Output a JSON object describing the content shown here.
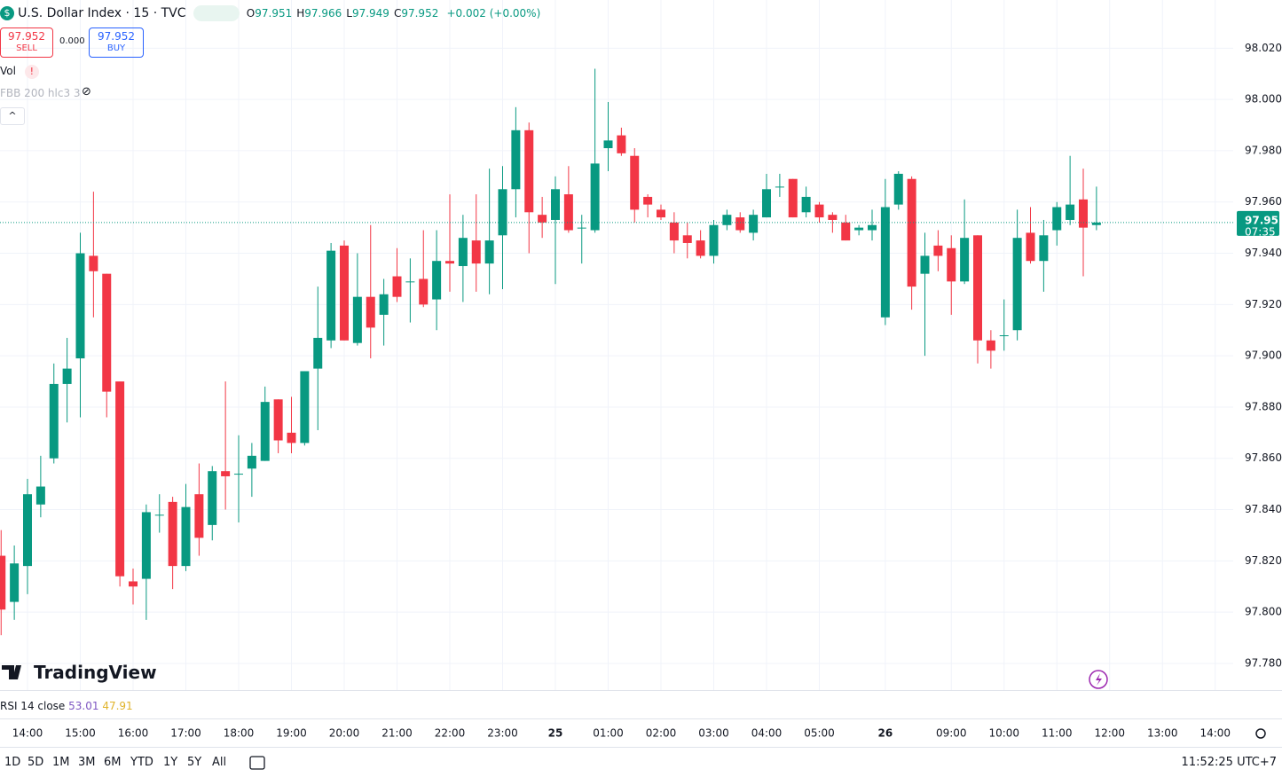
{
  "header": {
    "symbol": "U.S. Dollar Index · 15 · TVC",
    "ohlc": [
      {
        "label": "O",
        "value": 97.951
      },
      {
        "label": "H",
        "value": 97.966
      },
      {
        "label": "L",
        "value": 97.949
      },
      {
        "label": "C",
        "value": 97.952
      }
    ],
    "change": "+0.002 (+0.00%)"
  },
  "trade": {
    "sell_price": 97.952,
    "sell_label": "SELL",
    "spread": "0.000",
    "buy_price": 97.952,
    "buy_label": "BUY"
  },
  "indicators": {
    "volume": "Vol",
    "fbb": "FBB 200 hlc3 3",
    "rsi": "RSI 14 close",
    "rsi_values": [
      53.01,
      47.91
    ]
  },
  "logo": "TradingView",
  "ranges": [
    "1D",
    "5D",
    "1M",
    "3M",
    "6M",
    "YTD",
    "1Y",
    "5Y",
    "All"
  ],
  "clock": "11:52:25 UTC+7",
  "chart_data": {
    "type": "candlestick",
    "categories": [
      null,
      null,
      "14:00",
      null,
      null,
      null,
      "15:00",
      null,
      null,
      null,
      "16:00",
      null,
      null,
      null,
      "17:00",
      null,
      null,
      null,
      "18:00",
      null,
      null,
      null,
      "19:00",
      null,
      null,
      null,
      "20:00",
      null,
      null,
      null,
      "21:00",
      null,
      null,
      null,
      "22:00",
      null,
      null,
      null,
      "23:00",
      null,
      null,
      null,
      "25",
      null,
      null,
      null,
      "01:00",
      null,
      null,
      null,
      "02:00",
      null,
      null,
      null,
      "03:00",
      null,
      null,
      null,
      "04:00",
      null,
      null,
      null,
      "05:00",
      null,
      null,
      null,
      null,
      "26",
      null,
      null,
      null,
      null,
      "09:00",
      null,
      null,
      null,
      "10:00",
      null,
      null,
      null,
      "11:00",
      null,
      null,
      null,
      "12:00",
      null,
      null,
      null,
      "13:00",
      null,
      null,
      null,
      "14:00"
    ],
    "open": [
      97.822,
      97.804,
      97.818,
      97.842,
      97.86,
      97.889,
      97.899,
      97.939,
      97.932,
      97.89,
      97.812,
      97.813,
      97.838,
      97.843,
      97.818,
      97.846,
      97.834,
      97.855,
      97.854,
      97.856,
      97.859,
      97.883,
      97.87,
      97.866,
      97.895,
      97.906,
      97.943,
      97.905,
      97.923,
      97.916,
      97.931,
      97.929,
      97.93,
      97.922,
      97.937,
      97.935,
      97.945,
      97.936,
      97.947,
      97.965,
      97.988,
      97.955,
      97.953,
      97.963,
      97.95,
      97.949,
      97.981,
      97.986,
      97.978,
      97.962,
      97.957,
      97.952,
      97.947,
      97.945,
      97.939,
      97.951,
      97.954,
      97.948,
      97.954,
      97.966,
      97.969,
      97.956,
      97.959,
      97.955,
      97.952,
      97.949,
      97.949,
      97.915,
      97.959,
      97.969,
      97.932,
      97.943,
      97.942,
      97.929,
      97.947,
      97.906,
      97.908,
      97.91,
      97.948,
      97.937,
      97.949,
      97.953,
      97.961,
      97.951,
      null,
      null,
      null,
      null,
      null,
      null,
      null,
      null,
      null
    ],
    "high": [
      97.832,
      97.826,
      97.852,
      97.861,
      97.897,
      97.907,
      97.948,
      97.964,
      97.932,
      97.89,
      97.817,
      97.842,
      97.846,
      97.845,
      97.85,
      97.858,
      97.857,
      97.89,
      97.869,
      97.866,
      97.888,
      97.883,
      97.884,
      97.894,
      97.927,
      97.944,
      97.945,
      97.94,
      97.951,
      97.93,
      97.942,
      97.938,
      97.949,
      97.949,
      97.963,
      97.955,
      97.963,
      97.973,
      97.974,
      97.997,
      97.991,
      97.962,
      97.97,
      97.974,
      97.955,
      98.012,
      97.999,
      97.989,
      97.981,
      97.963,
      97.959,
      97.956,
      97.952,
      97.949,
      97.953,
      97.957,
      97.956,
      97.957,
      97.971,
      97.971,
      97.969,
      97.966,
      97.96,
      97.956,
      97.955,
      97.951,
      97.957,
      97.969,
      97.972,
      97.97,
      97.948,
      97.949,
      97.947,
      97.961,
      97.947,
      97.91,
      97.922,
      97.957,
      97.958,
      97.953,
      97.96,
      97.978,
      97.973,
      97.966,
      null,
      null,
      null,
      null,
      null,
      null,
      null,
      null,
      null
    ],
    "low": [
      97.791,
      97.797,
      97.807,
      97.837,
      97.858,
      97.874,
      97.876,
      97.915,
      97.876,
      97.81,
      97.803,
      97.797,
      97.831,
      97.809,
      97.816,
      97.822,
      97.828,
      97.84,
      97.835,
      97.845,
      97.859,
      97.862,
      97.862,
      97.865,
      97.871,
      97.903,
      97.906,
      97.904,
      97.899,
      97.904,
      97.921,
      97.913,
      97.919,
      97.91,
      97.925,
      97.921,
      97.925,
      97.924,
      97.926,
      97.954,
      97.94,
      97.946,
      97.928,
      97.948,
      97.936,
      97.948,
      97.972,
      97.978,
      97.952,
      97.954,
      97.953,
      97.94,
      97.938,
      97.938,
      97.936,
      97.949,
      97.948,
      97.945,
      97.954,
      97.962,
      97.954,
      97.954,
      97.952,
      97.948,
      97.945,
      97.947,
      97.945,
      97.912,
      97.957,
      97.918,
      97.9,
      97.933,
      97.916,
      97.928,
      97.897,
      97.895,
      97.902,
      97.906,
      97.936,
      97.925,
      97.943,
      97.951,
      97.931,
      97.949,
      null,
      null,
      null,
      null,
      null,
      null,
      null,
      null,
      null
    ],
    "close": [
      97.801,
      97.819,
      97.846,
      97.849,
      97.889,
      97.895,
      97.94,
      97.933,
      97.886,
      97.814,
      97.81,
      97.839,
      97.838,
      97.818,
      97.841,
      97.829,
      97.855,
      97.853,
      97.854,
      97.861,
      97.882,
      97.867,
      97.866,
      97.894,
      97.907,
      97.941,
      97.906,
      97.923,
      97.911,
      97.924,
      97.923,
      97.929,
      97.92,
      97.937,
      97.936,
      97.946,
      97.936,
      97.945,
      97.965,
      97.988,
      97.956,
      97.952,
      97.965,
      97.949,
      97.95,
      97.975,
      97.984,
      97.979,
      97.957,
      97.959,
      97.954,
      97.945,
      97.944,
      97.939,
      97.951,
      97.955,
      97.949,
      97.955,
      97.965,
      97.966,
      97.954,
      97.962,
      97.954,
      97.953,
      97.945,
      97.95,
      97.951,
      97.958,
      97.971,
      97.927,
      97.939,
      97.939,
      97.929,
      97.946,
      97.906,
      97.902,
      97.908,
      97.946,
      97.937,
      97.947,
      97.958,
      97.959,
      97.95,
      97.952,
      null,
      null,
      null,
      null,
      null,
      null,
      null,
      null,
      null
    ],
    "up_color": "#089981",
    "down_color": "#f23645",
    "ylim": [
      97.7696,
      98.0388
    ],
    "yticks": [
      {
        "value": 97.78,
        "label": "97.780"
      },
      {
        "value": 97.8,
        "label": "97.800"
      },
      {
        "value": 97.82,
        "label": "97.820"
      },
      {
        "value": 97.84,
        "label": "97.840"
      },
      {
        "value": 97.86,
        "label": "97.860"
      },
      {
        "value": 97.88,
        "label": "97.880"
      },
      {
        "value": 97.9,
        "label": "97.900"
      },
      {
        "value": 97.92,
        "label": "97.920"
      },
      {
        "value": 97.94,
        "label": "97.940"
      },
      {
        "value": 97.96,
        "label": "97.960"
      },
      {
        "value": 97.98,
        "label": "97.980"
      },
      {
        "value": 98.0,
        "label": "98.000"
      },
      {
        "value": 98.02,
        "label": "98.020"
      }
    ],
    "grid": true,
    "last_price": 97.952,
    "countdown": "07:35"
  }
}
